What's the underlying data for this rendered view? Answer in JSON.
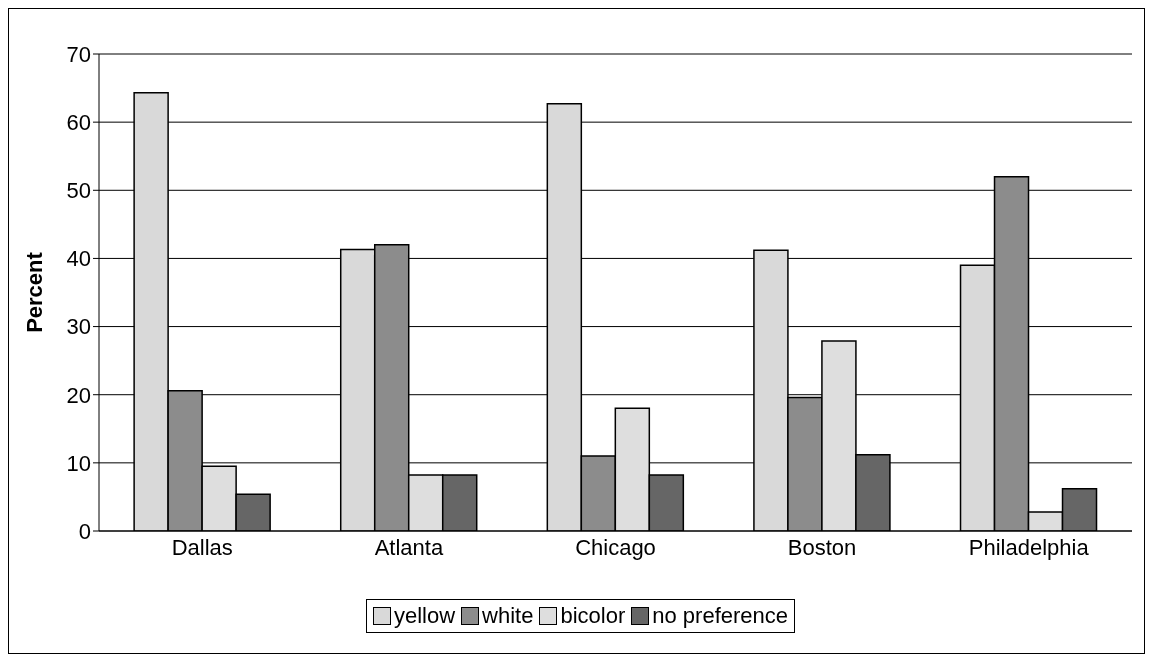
{
  "chart_data": {
    "type": "bar",
    "ylabel": "Percent",
    "categories": [
      "Dallas",
      "Atlanta",
      "Chicago",
      "Boston",
      "Philadelphia"
    ],
    "series": [
      {
        "name": "yellow",
        "color": "#d9d9d9",
        "values": [
          64.3,
          41.3,
          62.7,
          41.2,
          39.0
        ]
      },
      {
        "name": "white",
        "color": "#8c8c8c",
        "values": [
          20.6,
          42.0,
          11.0,
          19.6,
          52.0
        ]
      },
      {
        "name": "bicolor",
        "color": "#dedede",
        "values": [
          9.5,
          8.2,
          18.0,
          27.9,
          2.8
        ]
      },
      {
        "name": "no preference",
        "color": "#666666",
        "values": [
          5.4,
          8.2,
          8.2,
          11.2,
          6.2
        ]
      }
    ],
    "ylim": [
      0,
      70
    ],
    "yticks": [
      0,
      10,
      20,
      30,
      40,
      50,
      60,
      70
    ],
    "grid": "y",
    "legend": "bottom"
  }
}
